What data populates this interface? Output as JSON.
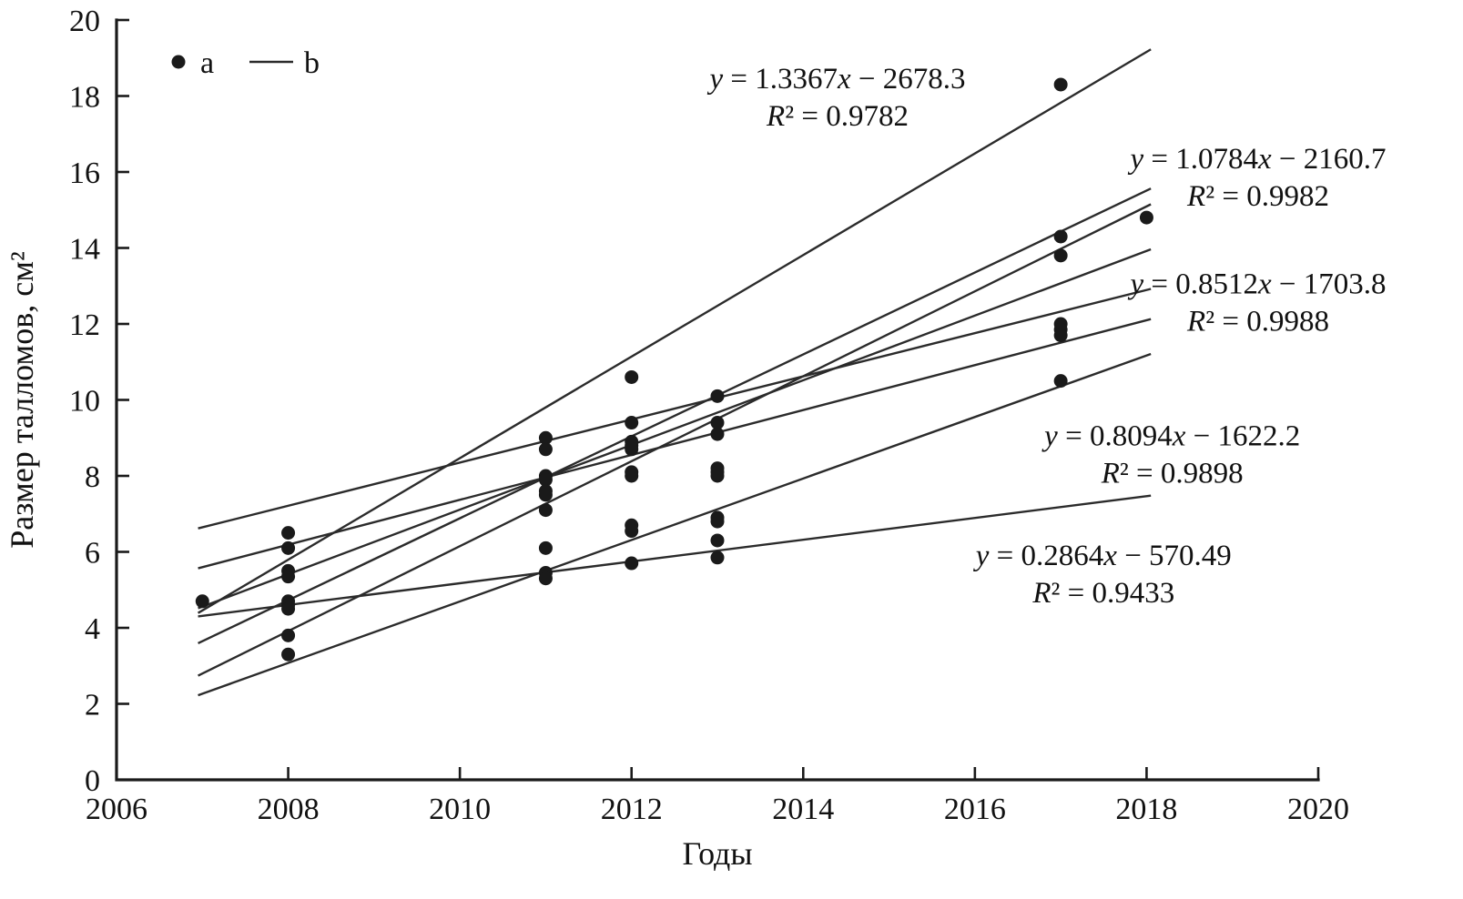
{
  "figure": {
    "legend": [
      {
        "marker": "dot",
        "label": "a"
      },
      {
        "marker": "line",
        "label": "b"
      }
    ]
  },
  "chart_data": {
    "type": "scatter",
    "title": "",
    "xlabel": "Годы",
    "ylabel": "Размер талломов, см²",
    "xlim": [
      2006,
      2020
    ],
    "ylim": [
      0,
      20
    ],
    "xticks": [
      2006,
      2008,
      2010,
      2012,
      2014,
      2016,
      2018,
      2020
    ],
    "yticks": [
      0,
      2,
      4,
      6,
      8,
      10,
      12,
      14,
      16,
      18,
      20
    ],
    "grid": false,
    "legend_position": "top-left",
    "point_color": "#1a1a1a",
    "line_color": "#2b2b2b",
    "scatter_groups": [
      {
        "x": 2007,
        "values": [
          4.7
        ]
      },
      {
        "x": 2008,
        "values": [
          6.5,
          6.1,
          5.5,
          5.35,
          4.7,
          4.6,
          4.5,
          3.8,
          3.3
        ]
      },
      {
        "x": 2011,
        "values": [
          9.0,
          8.7,
          8.0,
          7.9,
          7.6,
          7.5,
          7.1,
          6.1,
          5.45,
          5.3
        ]
      },
      {
        "x": 2012,
        "values": [
          10.6,
          9.4,
          8.9,
          8.8,
          8.7,
          8.1,
          8.0,
          6.7,
          6.55,
          5.7
        ]
      },
      {
        "x": 2013,
        "values": [
          10.1,
          9.4,
          9.1,
          8.2,
          8.1,
          8.0,
          6.9,
          6.8,
          6.3,
          5.85
        ]
      },
      {
        "x": 2017,
        "values": [
          18.3,
          14.3,
          13.8,
          12.0,
          11.85,
          11.7,
          10.5
        ]
      },
      {
        "x": 2018,
        "values": [
          14.8
        ]
      }
    ],
    "regression_lines": [
      {
        "slope": 1.3367,
        "intercept": -2678.3,
        "x_range": [
          2006.95,
          2018.05
        ],
        "labeled": true
      },
      {
        "slope": 1.0784,
        "intercept": -2160.7,
        "x_range": [
          2006.95,
          2018.05
        ],
        "labeled": true
      },
      {
        "slope": 1.118,
        "intercept": -2241.03,
        "x_range": [
          2006.95,
          2018.05
        ],
        "labeled": false
      },
      {
        "slope": 0.8512,
        "intercept": -1703.8,
        "x_range": [
          2006.95,
          2018.05
        ],
        "labeled": true
      },
      {
        "slope": 0.568,
        "intercept": -1133.33,
        "x_range": [
          2006.95,
          2018.05
        ],
        "labeled": false
      },
      {
        "slope": 0.591,
        "intercept": -1180.54,
        "x_range": [
          2006.95,
          2018.05
        ],
        "labeled": false
      },
      {
        "slope": 0.8094,
        "intercept": -1622.2,
        "x_range": [
          2006.95,
          2018.05
        ],
        "labeled": true
      },
      {
        "slope": 0.2864,
        "intercept": -570.49,
        "x_range": [
          2006.95,
          2018.05
        ],
        "labeled": true
      }
    ],
    "annotations": [
      {
        "line1": "y = 1.3367x − 2678.3",
        "line2": "R² = 0.9782",
        "x": 2014.4,
        "y": 18.2
      },
      {
        "line1": "y = 1.0784x − 2160.7",
        "line2": "R² = 0.9982",
        "x": 2019.3,
        "y": 16.1
      },
      {
        "line1": "y = 0.8512x − 1703.8",
        "line2": "R² = 0.9988",
        "x": 2019.3,
        "y": 12.8
      },
      {
        "line1": "y = 0.8094x − 1622.2",
        "line2": "R² = 0.9898",
        "x": 2018.3,
        "y": 8.8
      },
      {
        "line1": "y = 0.2864x − 570.49",
        "line2": "R² = 0.9433",
        "x": 2017.5,
        "y": 5.65
      }
    ]
  }
}
